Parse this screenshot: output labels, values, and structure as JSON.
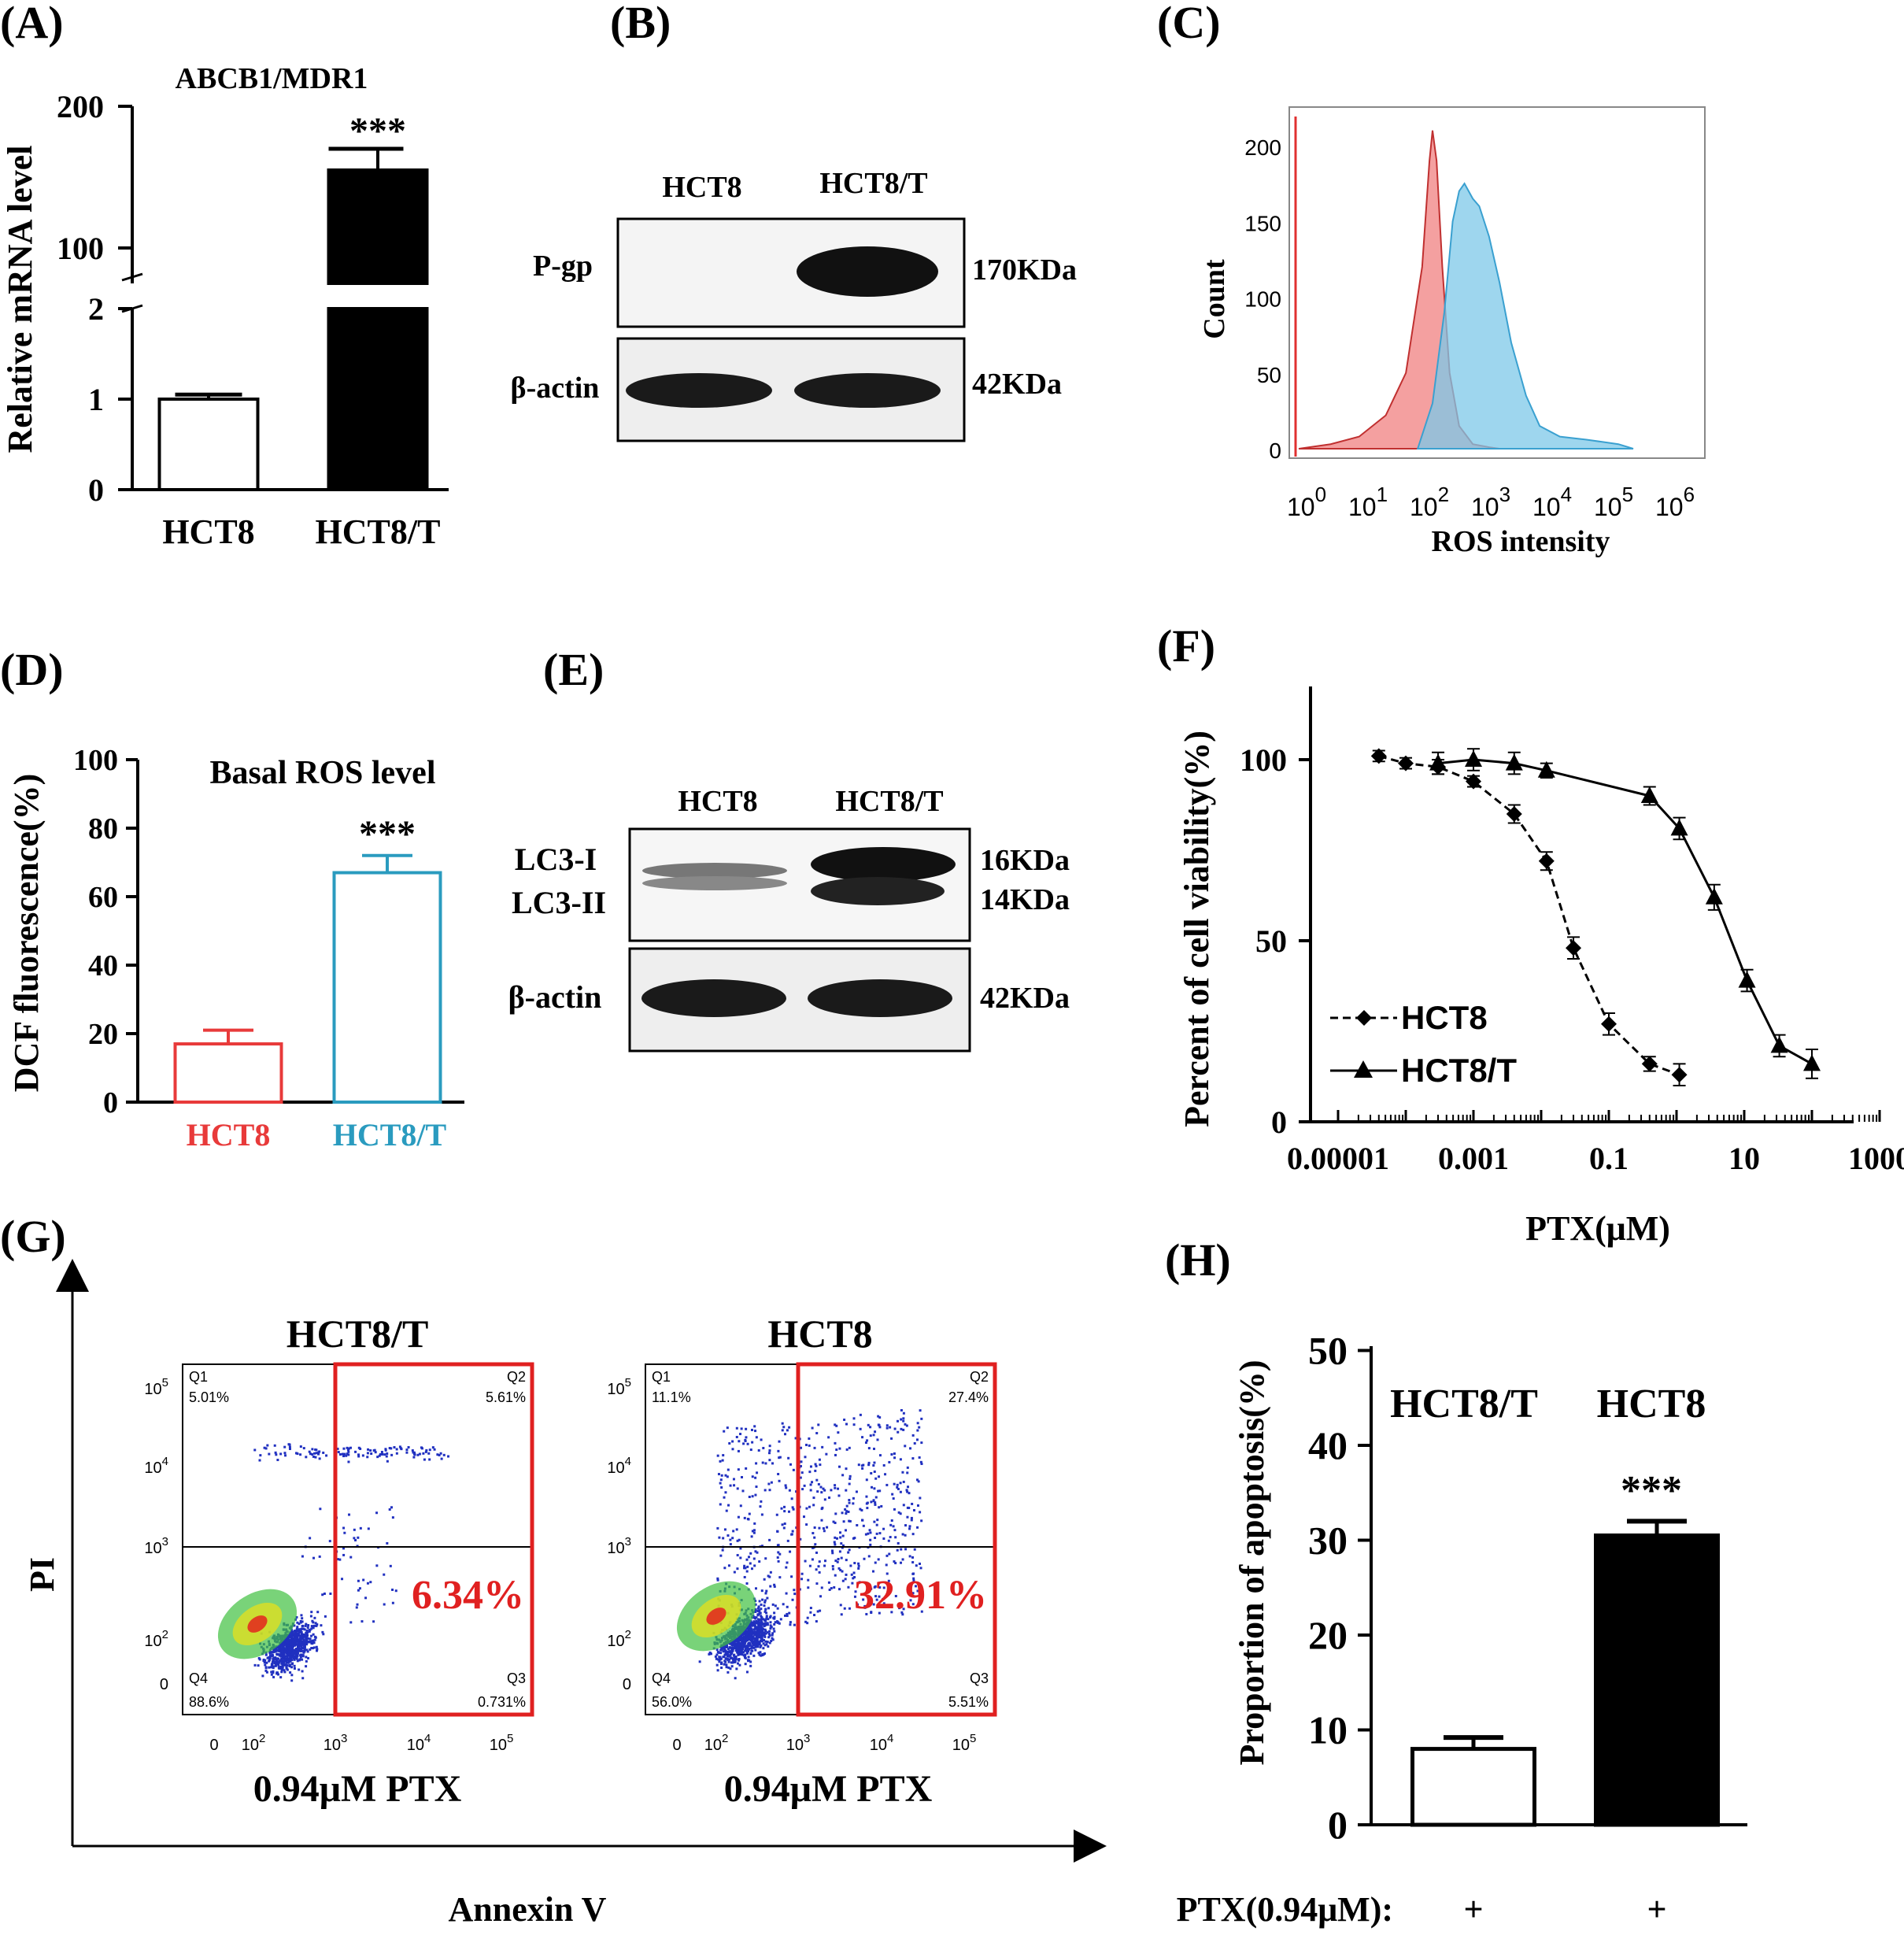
{
  "panels": {
    "A": "(A)",
    "B": "(B)",
    "C": "(C)",
    "D": "(D)",
    "E": "(E)",
    "F": "(F)",
    "G": "(G)",
    "H": "(H)"
  },
  "chart_data": [
    {
      "panel": "A",
      "type": "bar",
      "title": "ABCB1/MDR1",
      "ylabel": "Relative mRNA level",
      "categories": [
        "HCT8",
        "HCT8/T"
      ],
      "values": [
        1.0,
        155
      ],
      "errors": [
        0.05,
        15
      ],
      "bar_colors": [
        "#ffffff",
        "#000000"
      ],
      "significance": [
        "",
        "***"
      ],
      "yticks": [
        "0",
        "1",
        "2",
        "100",
        "200"
      ],
      "axis_break": [
        2,
        75
      ]
    },
    {
      "panel": "B",
      "type": "table",
      "lanes": [
        "HCT8",
        "HCT8/T"
      ],
      "rows": [
        {
          "protein": "P-gp",
          "size": "170KDa"
        },
        {
          "protein": "β-actin",
          "size": "42KDa"
        }
      ]
    },
    {
      "panel": "C",
      "type": "area",
      "xlabel": "ROS intensity",
      "ylabel": "Count",
      "xscale": "log",
      "yticks": [
        "0",
        "50",
        "100",
        "150",
        "200"
      ],
      "xticks": [
        {
          "base": "10",
          "exp": "0"
        },
        {
          "base": "10",
          "exp": "1"
        },
        {
          "base": "10",
          "exp": "2"
        },
        {
          "base": "10",
          "exp": "3"
        },
        {
          "base": "10",
          "exp": "4"
        },
        {
          "base": "10",
          "exp": "5"
        },
        {
          "base": "10",
          "exp": "6"
        }
      ],
      "series": [
        {
          "color": "#f08080",
          "x": [
            1,
            3,
            8,
            20,
            40,
            70,
            90,
            100,
            115,
            140,
            180,
            250,
            400,
            700,
            1000
          ],
          "y": [
            0,
            3,
            8,
            22,
            50,
            120,
            190,
            210,
            190,
            120,
            50,
            15,
            3,
            1,
            0
          ]
        },
        {
          "color": "#7ec8e8",
          "x": [
            60,
            100,
            150,
            200,
            250,
            300,
            400,
            500,
            700,
            1000,
            1500,
            2500,
            4000,
            8000,
            20000,
            60000,
            100000
          ],
          "y": [
            0,
            30,
            90,
            150,
            170,
            175,
            165,
            160,
            140,
            110,
            70,
            35,
            15,
            8,
            6,
            3,
            0
          ]
        }
      ]
    },
    {
      "panel": "D",
      "type": "bar",
      "title": "Basal ROS level",
      "ylabel": "DCF  fluorescence(%)",
      "categories": [
        "HCT8",
        "HCT8/T"
      ],
      "values": [
        17,
        67
      ],
      "errors": [
        4,
        5
      ],
      "bar_colors": [
        "#e83a3a",
        "#2a9bbf"
      ],
      "significance": [
        "",
        "***"
      ],
      "ylim": [
        0,
        100
      ],
      "yticks": [
        "0",
        "20",
        "40",
        "60",
        "80",
        "100"
      ]
    },
    {
      "panel": "E",
      "type": "table",
      "lanes": [
        "HCT8",
        "HCT8/T"
      ],
      "rows": [
        {
          "protein": "LC3-I",
          "size": "16KDa"
        },
        {
          "protein": "LC3-II",
          "size": "14KDa"
        },
        {
          "protein": "β-actin",
          "size": "42KDa"
        }
      ]
    },
    {
      "panel": "F",
      "type": "line",
      "xlabel": "PTX(μM)",
      "ylabel": "Percent of cell viability(%)",
      "xscale": "log",
      "ylim": [
        0,
        120
      ],
      "yticks": [
        "0",
        "50",
        "100"
      ],
      "xticks": [
        "0.00001",
        "0.001",
        "0.1",
        "10",
        "1000"
      ],
      "series": [
        {
          "name": "HCT8",
          "marker": "diamond",
          "dash": true,
          "x": [
            4e-05,
            0.0001,
            0.0003,
            0.001,
            0.004,
            0.012,
            0.03,
            0.1,
            0.4,
            1.1
          ],
          "y": [
            101,
            99,
            98,
            94,
            85,
            72,
            48,
            27,
            16,
            13
          ],
          "err": [
            1.5,
            1.5,
            2,
            1.5,
            2.5,
            2.5,
            3,
            3,
            2,
            3
          ]
        },
        {
          "name": "HCT8/T",
          "marker": "triangle",
          "dash": false,
          "x": [
            0.0003,
            0.001,
            0.004,
            0.012,
            0.4,
            1.1,
            3.6,
            11,
            33,
            100
          ],
          "y": [
            99,
            100,
            99,
            97,
            90,
            81,
            62,
            39,
            21,
            16
          ],
          "err": [
            3,
            3,
            3,
            2,
            2.5,
            3,
            3.5,
            3,
            3,
            4
          ]
        }
      ]
    },
    {
      "panel": "G",
      "type": "scatter",
      "xlabel": "Annexin V",
      "ylabel": "PI",
      "plots": [
        {
          "title": "HCT8/T",
          "treatment": "0.94μM PTX",
          "quadrants": {
            "q1": "Q1",
            "q1_val": "5.01%",
            "q2": "Q2",
            "q2_val": "5.61%",
            "q3": "Q3",
            "q3_val": "0.731%",
            "q4": "Q4",
            "q4_val": "88.6%"
          },
          "apoptosis": "6.34%"
        },
        {
          "title": "HCT8",
          "treatment": "0.94μM PTX",
          "quadrants": {
            "q1": "Q1",
            "q1_val": "11.1%",
            "q2": "Q2",
            "q2_val": "27.4%",
            "q3": "Q3",
            "q3_val": "5.51%",
            "q4": "Q4",
            "q4_val": "56.0%"
          },
          "apoptosis": "32.91%"
        }
      ],
      "xticks": [
        {
          "base": "0",
          "exp": ""
        },
        {
          "base": "10",
          "exp": "2"
        },
        {
          "base": "10",
          "exp": "3"
        },
        {
          "base": "10",
          "exp": "4"
        },
        {
          "base": "10",
          "exp": "5"
        }
      ],
      "yticks": [
        {
          "base": "0",
          "exp": ""
        },
        {
          "base": "10",
          "exp": "2"
        },
        {
          "base": "10",
          "exp": "3"
        },
        {
          "base": "10",
          "exp": "4"
        },
        {
          "base": "10",
          "exp": "5"
        }
      ]
    },
    {
      "panel": "H",
      "type": "bar",
      "ylabel": "Proportion of apoptosis(%)",
      "categories": [
        "HCT8/T",
        "HCT8"
      ],
      "values": [
        8,
        30.5
      ],
      "errors": [
        1.2,
        1.5
      ],
      "bar_colors": [
        "#ffffff",
        "#000000"
      ],
      "significance": [
        "",
        "***"
      ],
      "ylim": [
        0,
        50
      ],
      "yticks": [
        "0",
        "10",
        "20",
        "30",
        "40",
        "50"
      ],
      "treatment_label": "PTX(0.94μM):",
      "treatment": [
        "+",
        "+"
      ]
    }
  ]
}
